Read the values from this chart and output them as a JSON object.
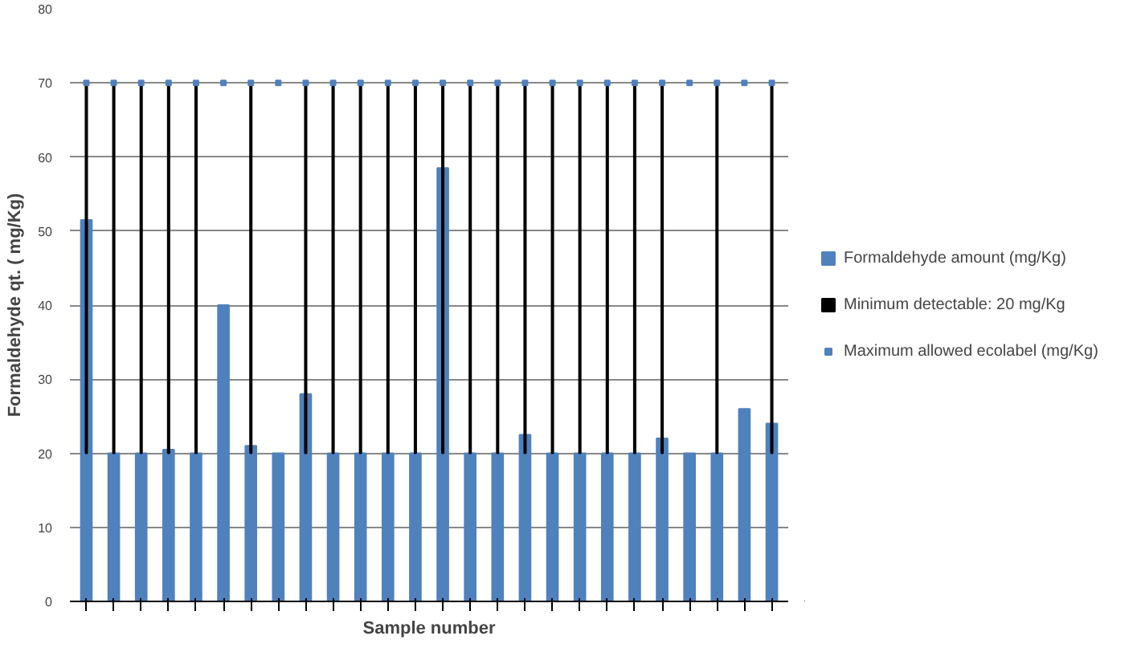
{
  "chart_data": {
    "type": "bar",
    "xlabel": "Sample number",
    "ylabel": "Formaldehyde qt. ( mg/Kg)",
    "categories": [
      null,
      null,
      null,
      null,
      null,
      null,
      null,
      null,
      null,
      null,
      null,
      null,
      null,
      null,
      null,
      null,
      null,
      null,
      null,
      null,
      null,
      null,
      null,
      null,
      null,
      null
    ],
    "series": [
      {
        "name": "Formaldehyde amount (mg/Kg)",
        "color": "#4f81bd",
        "values": [
          51.5,
          20,
          20,
          20.5,
          20,
          40,
          21,
          20,
          28,
          20,
          20,
          20,
          20,
          58.5,
          20,
          20,
          22.5,
          20,
          20,
          20,
          20,
          22,
          20,
          20,
          26,
          24
        ]
      },
      {
        "name": "Minimum detectable: 20 mg/Kg",
        "type": "bar",
        "color": "#000000",
        "base": [
          20,
          20,
          20,
          20,
          20,
          null,
          20,
          null,
          20,
          20,
          20,
          20,
          20,
          20,
          20,
          20,
          20,
          20,
          20,
          20,
          20,
          20,
          null,
          20,
          null,
          20
        ],
        "values": [
          50,
          50,
          50,
          50,
          50,
          null,
          50,
          null,
          50,
          50,
          50,
          50,
          50,
          50,
          50,
          50,
          50,
          50,
          50,
          50,
          50,
          50,
          null,
          50,
          null,
          50
        ]
      },
      {
        "name": "Maximum allowed ecolabel (mg/Kg)",
        "type": "scatter",
        "color": "#4f81bd",
        "marker": "square",
        "values": [
          70,
          70,
          70,
          70,
          70,
          70,
          70,
          70,
          70,
          70,
          70,
          70,
          70,
          70,
          70,
          70,
          70,
          70,
          70,
          70,
          70,
          70,
          70,
          70,
          70,
          70
        ]
      }
    ],
    "ylim": [
      0,
      80
    ],
    "yticks": [
      0,
      10,
      20,
      30,
      40,
      50,
      60,
      70,
      80
    ],
    "grid": "y",
    "legend": "right"
  }
}
